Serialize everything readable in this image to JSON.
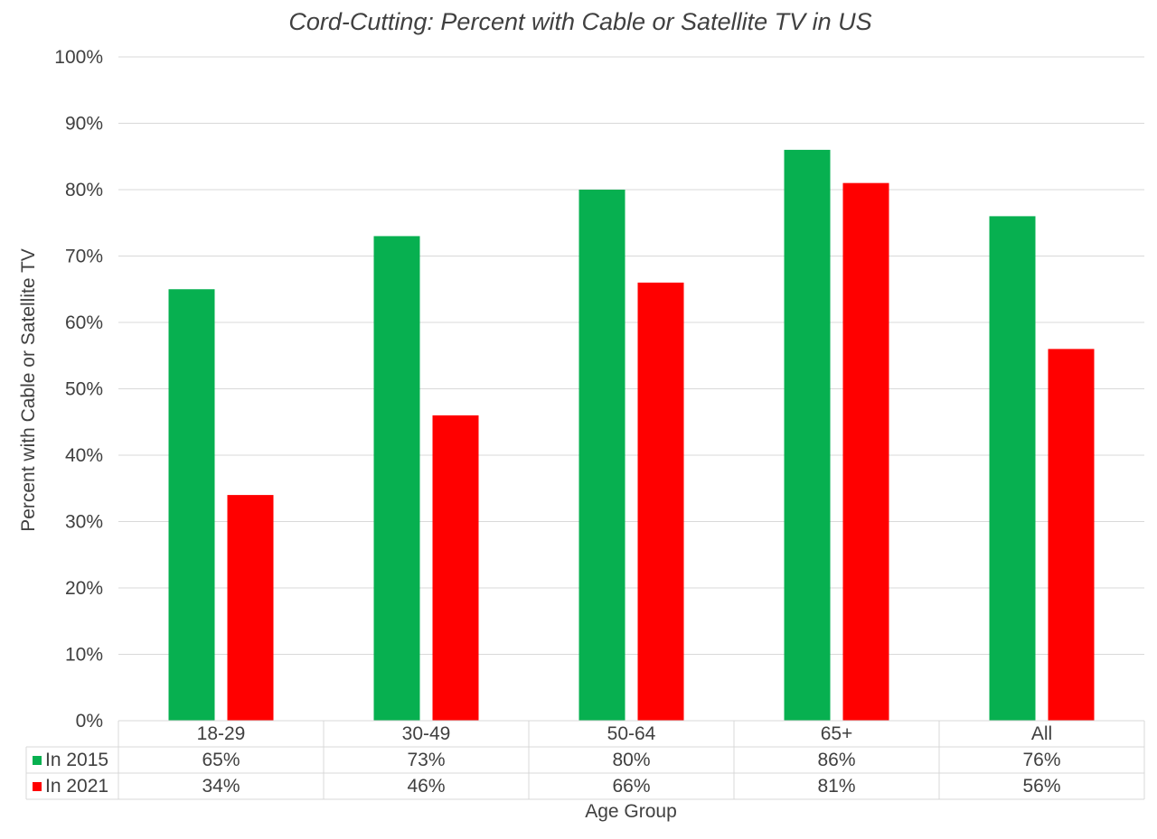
{
  "chart_data": {
    "type": "bar",
    "title": "Cord-Cutting: Percent with Cable or Satellite TV in US",
    "xlabel": "Age Group",
    "ylabel": "Percent with Cable or Satellite TV",
    "ylim": [
      0,
      100
    ],
    "yticks": [
      0,
      10,
      20,
      30,
      40,
      50,
      60,
      70,
      80,
      90,
      100
    ],
    "ytick_labels": [
      "0%",
      "10%",
      "20%",
      "30%",
      "40%",
      "50%",
      "60%",
      "70%",
      "80%",
      "90%",
      "100%"
    ],
    "grid": true,
    "legend": "data-table",
    "categories": [
      "18-29",
      "30-49",
      "50-64",
      "65+",
      "All"
    ],
    "series": [
      {
        "name": "In 2015",
        "color": "#07b050",
        "values": [
          65,
          73,
          80,
          86,
          76
        ],
        "labels": [
          "65%",
          "73%",
          "80%",
          "86%",
          "76%"
        ]
      },
      {
        "name": "In 2021",
        "color": "#ff0000",
        "values": [
          34,
          46,
          66,
          81,
          56
        ],
        "labels": [
          "34%",
          "46%",
          "66%",
          "81%",
          "56%"
        ]
      }
    ]
  }
}
